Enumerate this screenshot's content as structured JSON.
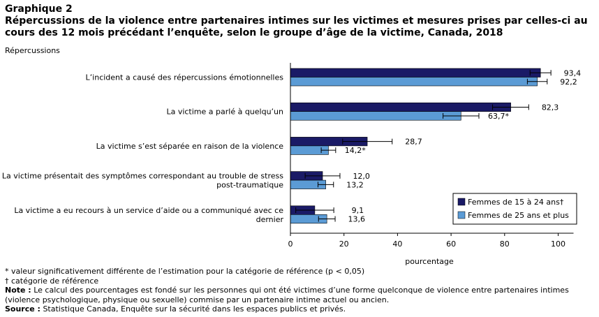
{
  "title": {
    "line1": "Graphique 2",
    "line2": "Répercussions de la violence entre partenaires intimes sur les victimes et mesures prises par celles-ci au cours des 12 mois précédant l’enquête, selon le groupe d’âge de la victime, Canada, 2018"
  },
  "chart_data": {
    "type": "bar",
    "orientation": "horizontal",
    "ylabel": "Répercussions",
    "xlabel": "pourcentage",
    "xlim": [
      0,
      100
    ],
    "xticks": [
      0,
      20,
      40,
      60,
      80,
      100
    ],
    "grid": false,
    "legend_position": "bottom-right",
    "categories": [
      [
        "L’incident a causé des répercussions émotionnelles"
      ],
      [
        "La victime a parlé à quelqu’un"
      ],
      [
        "La victime s’est séparée en raison de la violence"
      ],
      [
        "La victime présentait des symptômes correspondant au trouble de stress",
        "post-traumatique"
      ],
      [
        "La victime a eu recours à un service d’aide ou a communiqué avec ce",
        "dernier"
      ]
    ],
    "series": [
      {
        "name": "Femmes de 15 à 24 ans†",
        "color": "#1a1a66",
        "values": [
          93.4,
          82.3,
          28.7,
          12.0,
          9.1
        ],
        "labels": [
          "93,4",
          "82,3",
          "28,7",
          "12,0",
          "9,1"
        ],
        "error_low": [
          89.5,
          75.5,
          19.5,
          5.5,
          2.0
        ],
        "error_high": [
          97.3,
          89.0,
          38.0,
          18.5,
          16.2
        ]
      },
      {
        "name": "Femmes de 25 ans et plus",
        "color": "#5b9bd5",
        "values": [
          92.2,
          63.7,
          14.2,
          13.2,
          13.6
        ],
        "labels": [
          "92,2",
          "63,7*",
          "14,2*",
          "13,2",
          "13,6"
        ],
        "error_low": [
          88.5,
          57.0,
          11.5,
          10.3,
          10.5
        ],
        "error_high": [
          95.9,
          70.4,
          16.9,
          16.1,
          16.7
        ]
      }
    ]
  },
  "footer": {
    "note_star": "* valeur significativement différente de l’estimation pour la catégorie de référence (p < 0,05)",
    "note_dagger": "† catégorie de référence",
    "note_label": "Note :",
    "note_text": " Le calcul des pourcentages est fondé sur les personnes qui ont été victimes d’une forme quelconque de violence entre partenaires intimes (violence psychologique, physique ou sexuelle) commise par un partenaire intime actuel ou ancien.",
    "source_label": "Source :",
    "source_text": " Statistique Canada, Enquête sur la sécurité dans les espaces publics et privés."
  }
}
